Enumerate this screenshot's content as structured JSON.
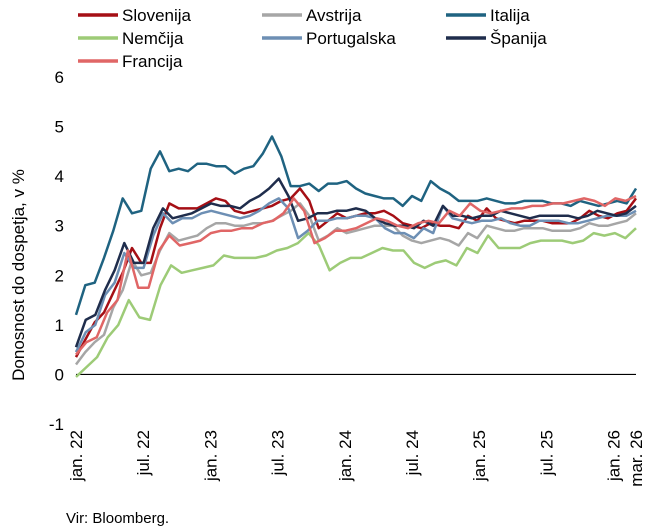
{
  "chart_data": {
    "type": "line",
    "ylabel": "Donosnost do dospetja, v %",
    "ylim": [
      -1,
      6
    ],
    "yticks": [
      "6",
      "5",
      "4",
      "3",
      "2",
      "1",
      "0",
      "-1"
    ],
    "xlabels": [
      "jan. 22",
      "jul. 22",
      "jan. 23",
      "jul. 23",
      "jan. 24",
      "jul. 24",
      "jan. 25",
      "jul. 25",
      "jan. 26",
      "mar. 26"
    ],
    "x_start": "jan. 22",
    "x_end": "mar. 26",
    "source": "Vir: Bloomberg.",
    "legend_position": "top",
    "series": [
      {
        "name": "Slovenija",
        "color": "#a50f15",
        "width": 2.5,
        "values": [
          0.35,
          0.7,
          1.05,
          1.25,
          1.65,
          2.05,
          2.55,
          2.25,
          2.25,
          2.95,
          3.45,
          3.35,
          3.35,
          3.35,
          3.45,
          3.55,
          3.5,
          3.3,
          3.25,
          3.3,
          3.35,
          3.4,
          3.5,
          3.55,
          3.75,
          3.5,
          2.95,
          3.1,
          3.25,
          3.15,
          3.2,
          3.25,
          3.25,
          3.3,
          3.2,
          3.05,
          3.0,
          2.95,
          3.05,
          3.0,
          3.0,
          2.95,
          3.2,
          3.1,
          3.35,
          3.15,
          3.1,
          3.05,
          3.1,
          3.1,
          3.1,
          3.05,
          3.05,
          3.05,
          3.15,
          3.3,
          3.2,
          3.15,
          3.25,
          3.3,
          3.55
        ]
      },
      {
        "name": "Avstrija",
        "color": "#a6a6a6",
        "width": 2.5,
        "values": [
          0.2,
          0.45,
          0.65,
          0.8,
          1.35,
          1.7,
          2.3,
          2.0,
          2.05,
          2.5,
          2.85,
          2.7,
          2.75,
          2.8,
          2.95,
          3.05,
          3.05,
          3.0,
          3.0,
          3.05,
          3.05,
          3.1,
          3.2,
          3.3,
          3.45,
          3.2,
          2.7,
          2.8,
          2.95,
          2.85,
          2.9,
          2.95,
          3.0,
          3.0,
          3.0,
          2.8,
          2.7,
          2.65,
          2.7,
          2.75,
          2.7,
          2.6,
          2.85,
          2.75,
          3.0,
          2.95,
          2.9,
          2.9,
          2.95,
          2.95,
          2.95,
          2.9,
          2.9,
          2.9,
          2.95,
          3.05,
          3.0,
          3.0,
          3.05,
          3.1,
          3.25
        ]
      },
      {
        "name": "Italija",
        "color": "#1f6381",
        "width": 2.5,
        "values": [
          1.2,
          1.8,
          1.85,
          2.35,
          2.9,
          3.55,
          3.25,
          3.3,
          4.15,
          4.5,
          4.1,
          4.15,
          4.1,
          4.25,
          4.25,
          4.2,
          4.2,
          4.05,
          4.15,
          4.2,
          4.45,
          4.8,
          4.4,
          3.8,
          3.8,
          3.85,
          3.7,
          3.85,
          3.85,
          3.9,
          3.75,
          3.65,
          3.6,
          3.55,
          3.55,
          3.4,
          3.6,
          3.5,
          3.9,
          3.75,
          3.65,
          3.5,
          3.5,
          3.5,
          3.55,
          3.5,
          3.45,
          3.45,
          3.5,
          3.5,
          3.5,
          3.45,
          3.45,
          3.4,
          3.5,
          3.45,
          3.4,
          3.45,
          3.5,
          3.45,
          3.75
        ]
      },
      {
        "name": "Nemčija",
        "color": "#9dcb77",
        "width": 2.5,
        "values": [
          -0.05,
          0.15,
          0.35,
          0.75,
          1.0,
          1.5,
          1.15,
          1.1,
          1.8,
          2.2,
          2.05,
          2.1,
          2.15,
          2.2,
          2.4,
          2.35,
          2.35,
          2.35,
          2.4,
          2.5,
          2.55,
          2.65,
          2.85,
          2.6,
          2.1,
          2.25,
          2.35,
          2.35,
          2.45,
          2.55,
          2.5,
          2.5,
          2.25,
          2.15,
          2.25,
          2.3,
          2.2,
          2.55,
          2.45,
          2.8,
          2.55,
          2.55,
          2.55,
          2.65,
          2.7,
          2.7,
          2.7,
          2.65,
          2.7,
          2.85,
          2.8,
          2.85,
          2.75,
          2.95
        ]
      },
      {
        "name": "Portugalska",
        "color": "#6d8fb4",
        "width": 2.5,
        "values": [
          0.45,
          0.85,
          1.0,
          1.6,
          1.85,
          2.45,
          2.15,
          2.15,
          2.8,
          3.25,
          3.05,
          3.15,
          3.15,
          3.25,
          3.3,
          3.25,
          3.2,
          3.15,
          3.2,
          3.3,
          3.45,
          3.55,
          3.35,
          2.75,
          2.9,
          3.1,
          3.1,
          3.15,
          3.15,
          3.2,
          3.2,
          3.15,
          2.95,
          2.85,
          2.85,
          2.75,
          2.95,
          2.85,
          3.4,
          3.15,
          3.1,
          3.05,
          3.1,
          3.1,
          3.15,
          3.05,
          3.0,
          3.0,
          3.1,
          3.1,
          3.1,
          3.05,
          3.05,
          3.1,
          3.15,
          3.2,
          3.2,
          3.2,
          3.3
        ]
      },
      {
        "name": "Španija",
        "color": "#1f2d4c",
        "width": 2.5,
        "values": [
          0.55,
          1.1,
          1.2,
          1.7,
          2.1,
          2.65,
          2.25,
          2.25,
          2.95,
          3.35,
          3.15,
          3.2,
          3.25,
          3.35,
          3.45,
          3.4,
          3.4,
          3.35,
          3.5,
          3.6,
          3.75,
          3.95,
          3.6,
          3.1,
          3.15,
          3.25,
          3.25,
          3.3,
          3.3,
          3.35,
          3.3,
          3.15,
          3.05,
          3.0,
          3.0,
          2.95,
          3.1,
          3.0,
          3.4,
          3.2,
          3.2,
          3.15,
          3.2,
          3.2,
          3.3,
          3.25,
          3.2,
          3.15,
          3.2,
          3.2,
          3.2,
          3.2,
          3.15,
          3.2,
          3.3,
          3.25,
          3.2,
          3.25,
          3.4
        ]
      },
      {
        "name": "Francija",
        "color": "#e06666",
        "width": 2.5,
        "values": [
          0.4,
          0.65,
          0.75,
          1.25,
          1.5,
          2.5,
          1.75,
          1.75,
          2.5,
          2.8,
          2.6,
          2.65,
          2.7,
          2.85,
          2.9,
          2.9,
          2.95,
          2.95,
          3.05,
          3.1,
          3.25,
          3.55,
          3.3,
          2.65,
          2.75,
          2.9,
          2.9,
          2.95,
          3.05,
          3.15,
          3.1,
          3.0,
          2.95,
          3.05,
          3.1,
          3.05,
          3.3,
          3.2,
          3.45,
          3.3,
          3.25,
          3.3,
          3.35,
          3.35,
          3.4,
          3.4,
          3.45,
          3.45,
          3.5,
          3.55,
          3.5,
          3.4,
          3.55,
          3.5,
          3.6
        ]
      }
    ]
  }
}
